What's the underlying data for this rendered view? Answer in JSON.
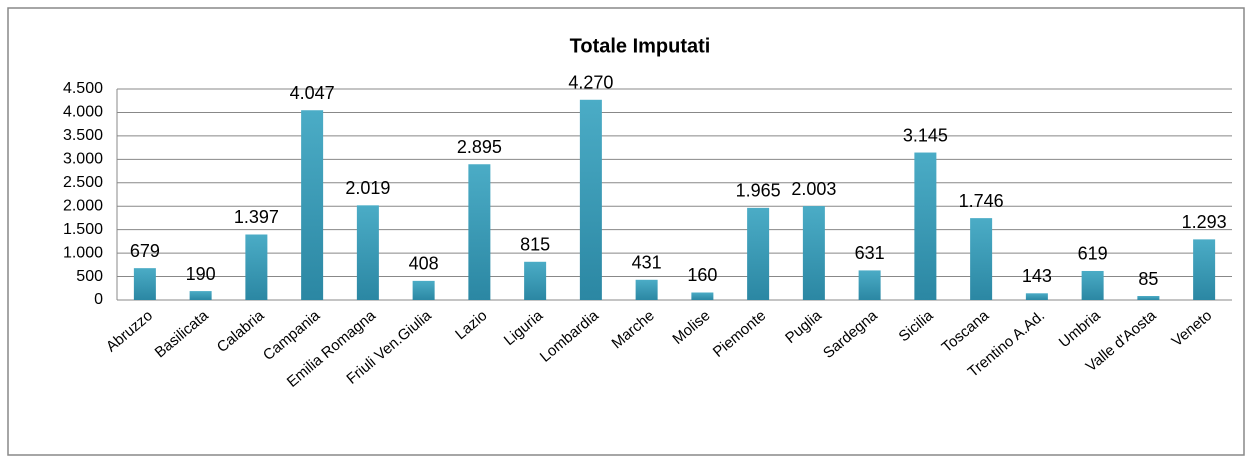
{
  "chart_data": {
    "type": "bar",
    "title": "Totale Imputati",
    "categories": [
      "Abruzzo",
      "Basilicata",
      "Calabria",
      "Campania",
      "Emilia Romagna",
      "Friuli Ven.Giulia",
      "Lazio",
      "Liguria",
      "Lombardia",
      "Marche",
      "Molise",
      "Piemonte",
      "Puglia",
      "Sardegna",
      "Sicilia",
      "Toscana",
      "Trentino A.Ad.",
      "Umbria",
      "Valle d'Aosta",
      "Veneto"
    ],
    "values": [
      679,
      190,
      1397,
      4047,
      2019,
      408,
      2895,
      815,
      4270,
      431,
      160,
      1965,
      2003,
      631,
      3145,
      1746,
      143,
      619,
      85,
      1293
    ],
    "value_labels": [
      "679",
      "190",
      "1.397",
      "4.047",
      "2.019",
      "408",
      "2.895",
      "815",
      "4.270",
      "431",
      "160",
      "1.965",
      "2.003",
      "631",
      "3.145",
      "1.746",
      "143",
      "619",
      "85",
      "1.293"
    ],
    "color": "#4bacc6",
    "ylim": [
      0,
      4500
    ],
    "yticks": [
      0,
      500,
      {
        "value": 1000,
        "label": "1.000"
      },
      {
        "value": 1500,
        "label": "1.500"
      },
      {
        "value": 2000,
        "label": "2.000"
      },
      {
        "value": 2500,
        "label": "2.500"
      },
      {
        "value": 3000,
        "label": "3.000"
      },
      {
        "value": 3500,
        "label": "3.500"
      },
      {
        "value": 4000,
        "label": "4.000"
      },
      {
        "value": 4500,
        "label": "4.500"
      }
    ],
    "grid": true
  }
}
